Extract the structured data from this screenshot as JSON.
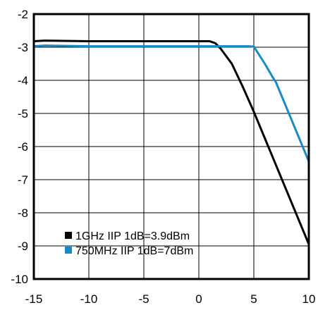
{
  "chart_data": {
    "type": "line",
    "title": "",
    "xlabel": "",
    "ylabel": "",
    "xlim": [
      -15,
      10
    ],
    "ylim": [
      -10,
      -2
    ],
    "xticks": [
      -15,
      -10,
      -5,
      0,
      5,
      10
    ],
    "yticks": [
      -2,
      -3,
      -4,
      -5,
      -6,
      -7,
      -8,
      -9,
      -10
    ],
    "x_tick_labels": [
      "-15",
      "-10",
      "-5",
      "0",
      "5",
      "10"
    ],
    "y_tick_labels": [
      "-2",
      "-3",
      "-4",
      "-5",
      "-6",
      "-7",
      "-8",
      "-9",
      "-10"
    ],
    "grid": true,
    "legend_position": "bottom-left",
    "series": [
      {
        "name": "1GHz IIP 1dB=3.9dBm",
        "color": "#000000",
        "x": [
          -15,
          -14,
          -10,
          -5,
          0,
          1,
          1.5,
          2,
          3,
          4,
          5,
          6,
          7,
          8,
          9,
          10
        ],
        "y": [
          -2.82,
          -2.8,
          -2.82,
          -2.82,
          -2.82,
          -2.82,
          -2.88,
          -3.05,
          -3.5,
          -4.2,
          -4.95,
          -5.75,
          -6.55,
          -7.35,
          -8.15,
          -8.95
        ]
      },
      {
        "name": "750MHz IIP 1dB=7dBm",
        "color": "#1a8ac4",
        "x": [
          -15,
          -14,
          -10,
          -5,
          0,
          3,
          4.5,
          5,
          6,
          6.7,
          7,
          8,
          9,
          10
        ],
        "y": [
          -2.97,
          -2.95,
          -2.97,
          -2.97,
          -2.97,
          -2.97,
          -2.97,
          -2.98,
          -3.5,
          -3.9,
          -4.05,
          -4.85,
          -5.65,
          -6.45
        ]
      }
    ]
  }
}
